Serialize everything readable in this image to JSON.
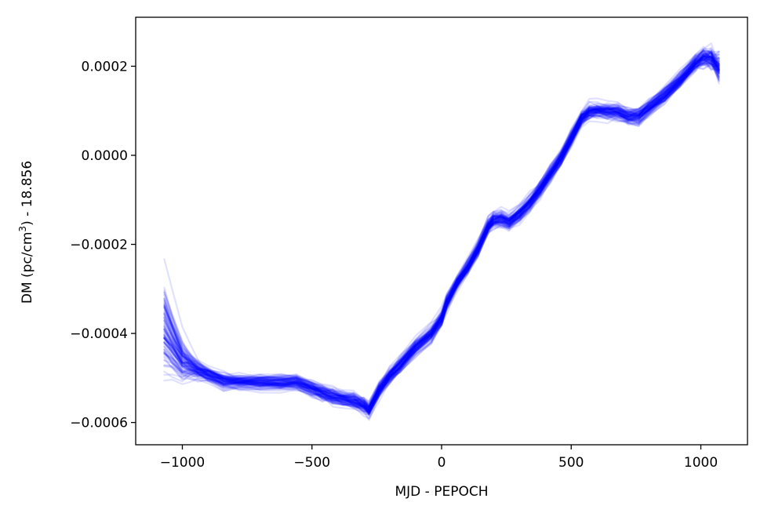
{
  "chart_data": {
    "type": "line",
    "title": "",
    "xlabel": "MJD - PEPOCH",
    "ylabel_main": "DM (pc/cm",
    "ylabel_sup": "3",
    "ylabel_tail": ") - 18.856",
    "xlim": [
      -1180,
      1180
    ],
    "ylim": [
      -0.00065,
      0.00031
    ],
    "xticks": [
      {
        "value": -1000,
        "label": "−1000"
      },
      {
        "value": -500,
        "label": "−500"
      },
      {
        "value": 0,
        "label": "0"
      },
      {
        "value": 500,
        "label": "500"
      },
      {
        "value": 1000,
        "label": "1000"
      }
    ],
    "yticks": [
      {
        "value": -0.0006,
        "label": "−0.0006"
      },
      {
        "value": -0.0004,
        "label": "−0.0004"
      },
      {
        "value": -0.0002,
        "label": "−0.0002"
      },
      {
        "value": 0.0,
        "label": "0.0000"
      },
      {
        "value": 0.0002,
        "label": "0.0002"
      }
    ],
    "grid": false,
    "line_color": "#0000ff",
    "line_alpha": 0.12,
    "realization_count": 100,
    "x": [
      -1070,
      -1040,
      -1000,
      -970,
      -940,
      -900,
      -840,
      -780,
      -700,
      -620,
      -560,
      -500,
      -460,
      -420,
      -380,
      -340,
      -300,
      -280,
      -240,
      -200,
      -160,
      -100,
      -40,
      0,
      20,
      60,
      100,
      140,
      180,
      200,
      230,
      260,
      300,
      340,
      380,
      420,
      460,
      500,
      540,
      570,
      600,
      640,
      680,
      720,
      760,
      800,
      860,
      920,
      980,
      1010,
      1040,
      1070
    ],
    "median": [
      -0.00039,
      -0.00042,
      -0.00046,
      -0.00047,
      -0.00048,
      -0.00049,
      -0.000505,
      -0.000507,
      -0.000508,
      -0.000508,
      -0.000508,
      -0.000522,
      -0.000532,
      -0.00054,
      -0.000545,
      -0.00055,
      -0.00056,
      -0.00057,
      -0.000525,
      -0.000495,
      -0.00047,
      -0.00043,
      -0.0004,
      -0.000365,
      -0.00033,
      -0.000285,
      -0.00025,
      -0.00021,
      -0.000158,
      -0.000145,
      -0.000142,
      -0.000148,
      -0.00013,
      -0.000105,
      -7.5e-05,
      -4e-05,
      -5e-06,
      4e-05,
      8.5e-05,
      0.0001,
      0.000102,
      0.0001,
      9.8e-05,
      8.8e-05,
      8.8e-05,
      0.000108,
      0.000135,
      0.00017,
      0.00021,
      0.000222,
      0.00022,
      0.0002
    ]
  }
}
